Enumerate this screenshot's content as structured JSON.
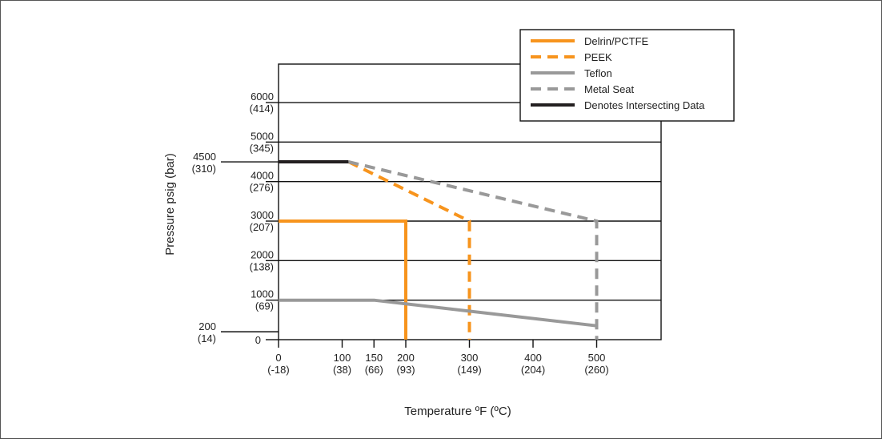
{
  "chart_data": {
    "type": "line",
    "title": "",
    "xlabel": "Temperature ºF (ºC)",
    "ylabel": "Pressure psig (bar)",
    "xlim": [
      0,
      600
    ],
    "ylim": [
      0,
      6600
    ],
    "y_gridlines": [
      1000,
      2000,
      3000,
      4000,
      5000,
      6000
    ],
    "x_ticks": [
      {
        "value": 0,
        "f": "0",
        "c": "(-18)"
      },
      {
        "value": 100,
        "f": "100",
        "c": "(38)"
      },
      {
        "value": 150,
        "f": "150",
        "c": "(66)"
      },
      {
        "value": 200,
        "f": "200",
        "c": "(93)"
      },
      {
        "value": 300,
        "f": "300",
        "c": "(149)"
      },
      {
        "value": 400,
        "f": "400",
        "c": "(204)"
      },
      {
        "value": 500,
        "f": "500",
        "c": "(260)"
      }
    ],
    "y_ticks": [
      {
        "value": 0,
        "psi": "0",
        "bar": ""
      },
      {
        "value": 200,
        "psi": "200",
        "bar": "(14)",
        "outside": true
      },
      {
        "value": 1000,
        "psi": "1000",
        "bar": "(69)"
      },
      {
        "value": 2000,
        "psi": "2000",
        "bar": "(138)"
      },
      {
        "value": 3000,
        "psi": "3000",
        "bar": "(207)"
      },
      {
        "value": 4000,
        "psi": "4000",
        "bar": "(276)"
      },
      {
        "value": 4500,
        "psi": "4500",
        "bar": "(310)",
        "outside": true
      },
      {
        "value": 5000,
        "psi": "5000",
        "bar": "(345)"
      },
      {
        "value": 6000,
        "psi": "6000",
        "bar": "(414)"
      }
    ],
    "series": [
      {
        "name": "Delrin/PCTFE",
        "color": "#f7941d",
        "dash": false,
        "points": [
          [
            0,
            3000
          ],
          [
            200,
            3000
          ],
          [
            200,
            0
          ]
        ]
      },
      {
        "name": "PEEK",
        "color": "#f7941d",
        "dash": true,
        "points": [
          [
            110,
            4500
          ],
          [
            300,
            3000
          ],
          [
            300,
            0
          ]
        ]
      },
      {
        "name": "Teflon",
        "color": "#999999",
        "dash": false,
        "points": [
          [
            0,
            1000
          ],
          [
            150,
            1000
          ],
          [
            500,
            350
          ]
        ]
      },
      {
        "name": "Metal Seat",
        "color": "#999999",
        "dash": true,
        "points": [
          [
            110,
            4500
          ],
          [
            500,
            3000
          ],
          [
            500,
            0
          ]
        ]
      },
      {
        "name": "Denotes Intersecting Data",
        "color": "#231f20",
        "dash": false,
        "points": [
          [
            0,
            4500
          ],
          [
            110,
            4500
          ]
        ]
      }
    ],
    "legend_position": "top-right"
  }
}
